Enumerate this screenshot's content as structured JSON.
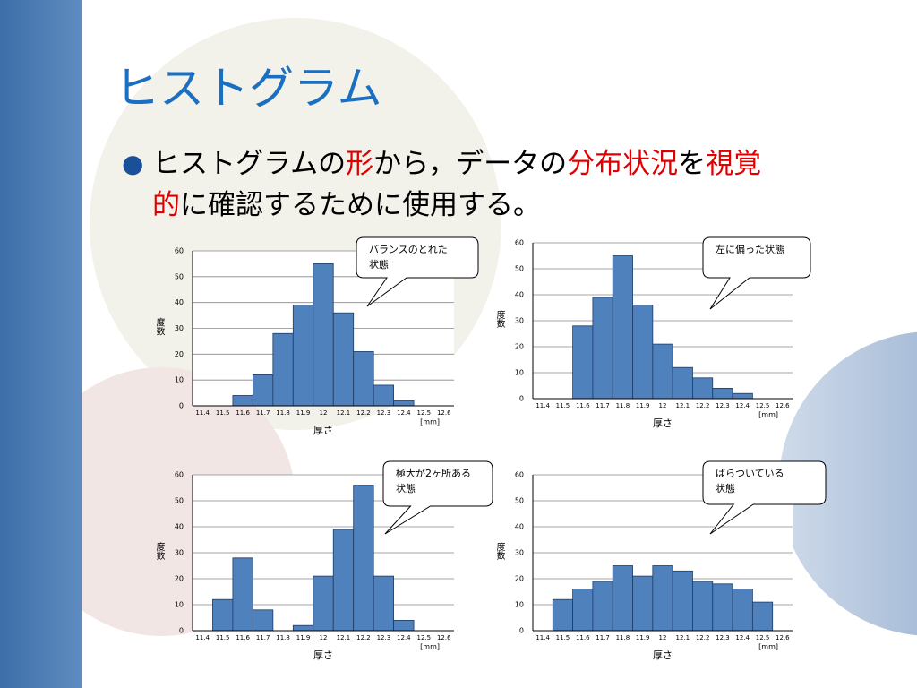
{
  "title": "ヒストグラム",
  "bullet": [
    {
      "text": "ヒストグラムの",
      "color": "#000000"
    },
    {
      "text": "形",
      "color": "#e00000"
    },
    {
      "text": "から，データの",
      "color": "#000000"
    },
    {
      "text": "分布状況",
      "color": "#e00000"
    },
    {
      "text": "を",
      "color": "#000000"
    },
    {
      "text": "視覚",
      "color": "#e00000"
    },
    {
      "text": "的",
      "color": "#e00000"
    },
    {
      "text": "に確認するために使用する。",
      "color": "#000000"
    }
  ],
  "chart_data": [
    {
      "type": "bar",
      "annotation": [
        "バランスのとれた",
        "状態"
      ],
      "xlabel": "厚さ",
      "ylabel": "度数",
      "unit": "[mm]",
      "categories": [
        "11.4",
        "11.5",
        "11.6",
        "11.7",
        "11.8",
        "11.9",
        "12",
        "12.1",
        "12.2",
        "12.3",
        "12.4",
        "12.5",
        "12.6"
      ],
      "values": [
        0,
        0,
        4,
        12,
        28,
        39,
        55,
        36,
        21,
        8,
        2,
        0,
        0
      ],
      "color": "#4f81bd",
      "ylim": [
        0,
        60
      ],
      "yticks": [
        0,
        10,
        20,
        30,
        40,
        50,
        60
      ],
      "grid": true
    },
    {
      "type": "bar",
      "annotation": [
        "左に偏った状態"
      ],
      "xlabel": "厚さ",
      "ylabel": "度数",
      "unit": "[mm]",
      "categories": [
        "11.4",
        "11.5",
        "11.6",
        "11.7",
        "11.8",
        "11.9",
        "12",
        "12.1",
        "12.2",
        "12.3",
        "12.4",
        "12.5",
        "12.6"
      ],
      "values": [
        0,
        0,
        28,
        39,
        55,
        36,
        21,
        12,
        8,
        4,
        2,
        0,
        0
      ],
      "color": "#4f81bd",
      "ylim": [
        0,
        60
      ],
      "yticks": [
        0,
        10,
        20,
        30,
        40,
        50,
        60
      ],
      "grid": true
    },
    {
      "type": "bar",
      "annotation": [
        "極大が2ヶ所ある",
        "状態"
      ],
      "xlabel": "厚さ",
      "ylabel": "度数",
      "unit": "[mm]",
      "categories": [
        "11.4",
        "11.5",
        "11.6",
        "11.7",
        "11.8",
        "11.9",
        "12",
        "12.1",
        "12.2",
        "12.3",
        "12.4",
        "12.5",
        "12.6"
      ],
      "values": [
        0,
        12,
        28,
        8,
        0,
        2,
        21,
        39,
        56,
        21,
        4,
        0,
        0
      ],
      "color": "#4f81bd",
      "ylim": [
        0,
        60
      ],
      "yticks": [
        0,
        10,
        20,
        30,
        40,
        50,
        60
      ],
      "grid": true
    },
    {
      "type": "bar",
      "annotation": [
        "ばらついている",
        "状態"
      ],
      "xlabel": "厚さ",
      "ylabel": "度数",
      "unit": "[mm]",
      "categories": [
        "11.4",
        "11.5",
        "11.6",
        "11.7",
        "11.8",
        "11.9",
        "12",
        "12.1",
        "12.2",
        "12.3",
        "12.4",
        "12.5",
        "12.6"
      ],
      "values": [
        0,
        12,
        16,
        19,
        25,
        21,
        25,
        23,
        19,
        18,
        16,
        11,
        0
      ],
      "color": "#4f81bd",
      "ylim": [
        0,
        60
      ],
      "yticks": [
        0,
        10,
        20,
        30,
        40,
        50,
        60
      ],
      "grid": true
    }
  ]
}
